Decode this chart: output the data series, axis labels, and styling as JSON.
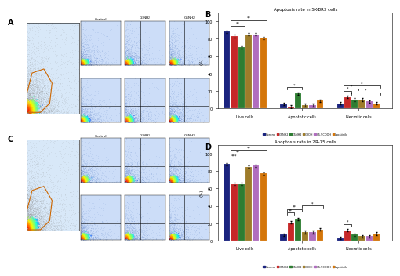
{
  "title_B": "Apoptosis rate in SK-BR3 cells",
  "title_D": "Apoptosis rate in ZR-75 cells",
  "categories": [
    "Live cells",
    "Apoptotic cells",
    "Necrotic cells"
  ],
  "legend_labels": [
    "Control",
    "G3NH2",
    "G5NH2",
    "G3OH",
    "G5.5COOH",
    "Lapatinib"
  ],
  "bar_colors": [
    "#1a237e",
    "#c62828",
    "#2e7d32",
    "#9e7c2a",
    "#b06ebe",
    "#d4760a"
  ],
  "B_data": {
    "Live cells": [
      88,
      83,
      70,
      85,
      85,
      81
    ],
    "Apoptotic cells": [
      5,
      2,
      17,
      4,
      4,
      9
    ],
    "Necrotic cells": [
      6,
      13,
      10,
      10,
      8,
      6
    ]
  },
  "D_data": {
    "Live cells": [
      88,
      65,
      65,
      85,
      86,
      77
    ],
    "Apoptotic cells": [
      7,
      21,
      25,
      10,
      10,
      13
    ],
    "Necrotic cells": [
      3,
      12,
      7,
      5,
      5,
      8
    ]
  },
  "ylabel": "(%)",
  "ylim_B": [
    0,
    110
  ],
  "ylim_D": [
    0,
    110
  ],
  "yticks": [
    0,
    20,
    40,
    60,
    80,
    100
  ],
  "background_color": "#ffffff"
}
